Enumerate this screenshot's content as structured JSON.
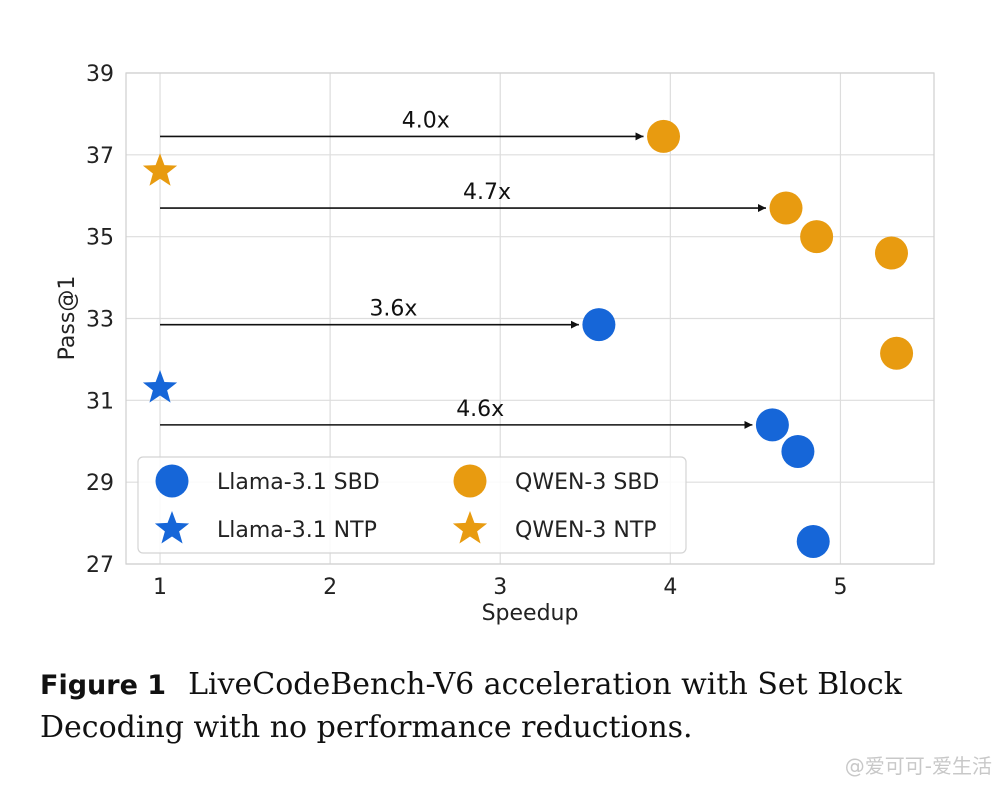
{
  "chart_data": {
    "type": "scatter",
    "title": "",
    "xlabel": "Speedup",
    "ylabel": "Pass@1",
    "xlim": [
      0.8,
      5.55
    ],
    "ylim": [
      27,
      39
    ],
    "xticks": [
      1,
      2,
      3,
      4,
      5
    ],
    "yticks": [
      27,
      29,
      31,
      33,
      35,
      37,
      39
    ],
    "grid": true,
    "legend_position": "lower-left",
    "series": [
      {
        "name": "Llama-3.1 SBD",
        "marker": "circle",
        "color": "#1666d8",
        "points": [
          {
            "x": 3.58,
            "y": 32.85
          },
          {
            "x": 4.6,
            "y": 30.4
          },
          {
            "x": 4.75,
            "y": 29.75
          },
          {
            "x": 4.84,
            "y": 27.55
          }
        ]
      },
      {
        "name": "Llama-3.1 NTP",
        "marker": "star",
        "color": "#1666d8",
        "points": [
          {
            "x": 1.0,
            "y": 31.3
          }
        ]
      },
      {
        "name": "QWEN-3 SBD",
        "marker": "circle",
        "color": "#e89b10",
        "points": [
          {
            "x": 3.96,
            "y": 37.45
          },
          {
            "x": 4.68,
            "y": 35.7
          },
          {
            "x": 4.86,
            "y": 35.0
          },
          {
            "x": 5.3,
            "y": 34.6
          },
          {
            "x": 5.33,
            "y": 32.15
          }
        ]
      },
      {
        "name": "QWEN-3 NTP",
        "marker": "star",
        "color": "#e89b10",
        "points": [
          {
            "x": 1.0,
            "y": 36.6
          }
        ]
      }
    ],
    "annotations": [
      {
        "label": "4.0x",
        "from": {
          "x": 1.0,
          "y": 37.45
        },
        "to": {
          "x": 3.96,
          "y": 37.45
        }
      },
      {
        "label": "4.7x",
        "from": {
          "x": 1.0,
          "y": 35.7
        },
        "to": {
          "x": 4.68,
          "y": 35.7
        }
      },
      {
        "label": "3.6x",
        "from": {
          "x": 1.0,
          "y": 32.85
        },
        "to": {
          "x": 3.58,
          "y": 32.85
        }
      },
      {
        "label": "4.6x",
        "from": {
          "x": 1.0,
          "y": 30.4
        },
        "to": {
          "x": 4.6,
          "y": 30.4
        }
      }
    ]
  },
  "caption": {
    "label": "Figure 1",
    "text": "LiveCodeBench-V6 acceleration with Set Block Decoding with no performance reductions."
  },
  "watermark": "@爱可可-爱生活"
}
